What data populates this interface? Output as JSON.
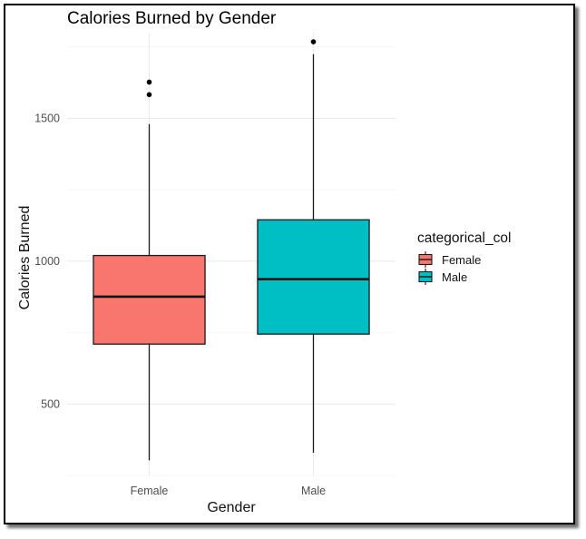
{
  "chart_data": {
    "type": "boxplot",
    "title": "Calories Burned by Gender",
    "xlabel": "Gender",
    "ylabel": "Calories Burned",
    "categories": [
      "Female",
      "Male"
    ],
    "ylim": [
      250,
      1800
    ],
    "yticks": [
      500,
      1000,
      1500
    ],
    "grid": true,
    "legend": {
      "title": "categorical_col",
      "position": "right",
      "entries": [
        "Female",
        "Male"
      ]
    },
    "colors": {
      "Female": "#f8766d",
      "Male": "#00bfc4"
    },
    "boxes": [
      {
        "name": "Female",
        "whisker_low": 303,
        "q1": 710,
        "median": 876,
        "q3": 1020,
        "whisker_high": 1480,
        "outliers": [
          1583,
          1627
        ]
      },
      {
        "name": "Male",
        "whisker_low": 330,
        "q1": 745,
        "median": 937,
        "q3": 1145,
        "whisker_high": 1725,
        "outliers": [
          1768
        ]
      }
    ]
  }
}
